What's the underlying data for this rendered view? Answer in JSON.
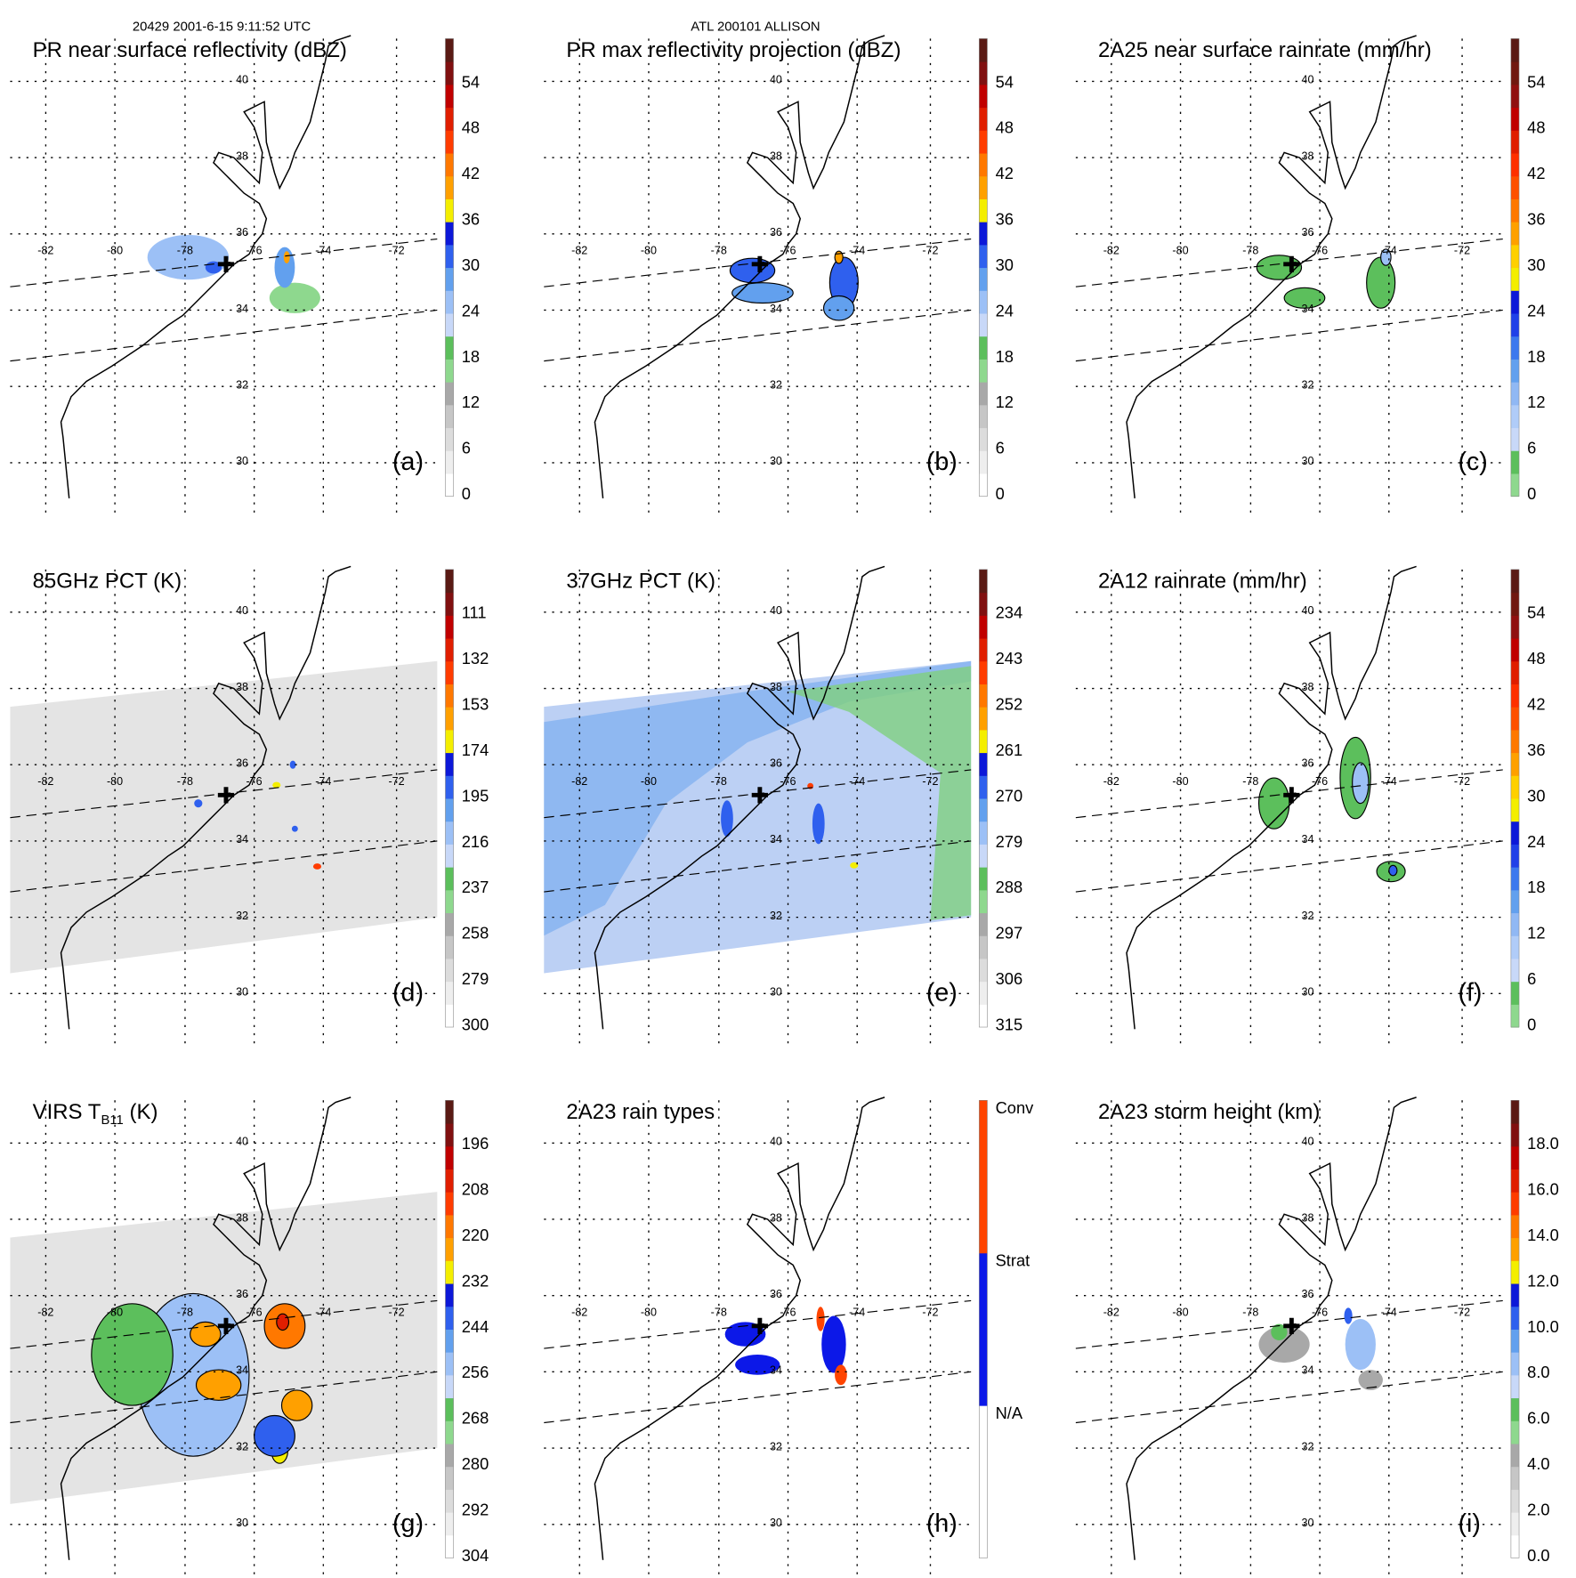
{
  "header": {
    "left": "20429 2001-6-15 9:11:52 UTC",
    "center": "ATL 200101 ALLISON"
  },
  "grid": {
    "lat_labels": [
      "40",
      "38",
      "36",
      "34",
      "32",
      "30"
    ],
    "lon_labels": [
      "-82",
      "-80",
      "-78",
      "-76",
      "-74",
      "-72"
    ]
  },
  "colors": {
    "standard": [
      "#ffffff",
      "#eeeeee",
      "#dcdcdc",
      "#c6c6c6",
      "#a8a8a8",
      "#8ed88e",
      "#5cbf5c",
      "#c8d8f8",
      "#9cc0f6",
      "#62a0ee",
      "#2f60ee",
      "#0c18d8",
      "#f4ee00",
      "#ffa000",
      "#ff7800",
      "#ff3c00",
      "#e01e00",
      "#c00000",
      "#801010",
      "#5a1a14"
    ],
    "rain": [
      "#8ed88e",
      "#5cbf5c",
      "#c8d8f8",
      "#b0ccf8",
      "#90b8f4",
      "#62a0ee",
      "#3c78ee",
      "#2040e8",
      "#0c18d8",
      "#f4ee00",
      "#ffd000",
      "#ffa000",
      "#ff7800",
      "#ff5000",
      "#ff3000",
      "#e01e00",
      "#c00000",
      "#901010",
      "#701810",
      "#5a1a14"
    ],
    "raintype": [
      "#ffffff",
      "#0c18e8",
      "#ff4400"
    ],
    "marker": "#000000"
  },
  "panels": [
    {
      "letter": "(a)",
      "title": "PR near surface reflectivity (dBZ)",
      "cb": "standard",
      "ticks": [
        "54",
        "48",
        "42",
        "36",
        "30",
        "24",
        "18",
        "12",
        "6",
        "0"
      ]
    },
    {
      "letter": "(b)",
      "title": "PR max reflectivity projection (dBZ)",
      "cb": "standard",
      "ticks": [
        "54",
        "48",
        "42",
        "36",
        "30",
        "24",
        "18",
        "12",
        "6",
        "0"
      ]
    },
    {
      "letter": "(c)",
      "title": "2A25 near surface rainrate (mm/hr)",
      "cb": "rain",
      "ticks": [
        "54",
        "48",
        "42",
        "36",
        "30",
        "24",
        "18",
        "12",
        "6",
        "0"
      ]
    },
    {
      "letter": "(d)",
      "title": "85GHz PCT (K)",
      "cb": "standard",
      "ticks": [
        "111",
        "132",
        "153",
        "174",
        "195",
        "216",
        "237",
        "258",
        "279",
        "300"
      ]
    },
    {
      "letter": "(e)",
      "title": "37GHz PCT (K)",
      "cb": "standard",
      "ticks": [
        "234",
        "243",
        "252",
        "261",
        "270",
        "279",
        "288",
        "297",
        "306",
        "315"
      ]
    },
    {
      "letter": "(f)",
      "title": "2A12 rainrate (mm/hr)",
      "cb": "rain",
      "ticks": [
        "54",
        "48",
        "42",
        "36",
        "30",
        "24",
        "18",
        "12",
        "6",
        "0"
      ]
    },
    {
      "letter": "(g)",
      "title": "VIRS T",
      "title_sub": "B11",
      "title_tail": " (K)",
      "cb": "standard",
      "ticks": [
        "196",
        "208",
        "220",
        "232",
        "244",
        "256",
        "268",
        "280",
        "292",
        "304"
      ]
    },
    {
      "letter": "(h)",
      "title": "2A23 rain types",
      "cb": "raintype",
      "ticks": [
        "Conv",
        "Strat",
        "N/A"
      ]
    },
    {
      "letter": "(i)",
      "title": "2A23 storm height (km)",
      "cb": "standard",
      "ticks": [
        "18.0",
        "16.0",
        "14.0",
        "12.0",
        "10.0",
        "8.0",
        "6.0",
        "4.0",
        "2.0",
        "0.0"
      ]
    }
  ]
}
